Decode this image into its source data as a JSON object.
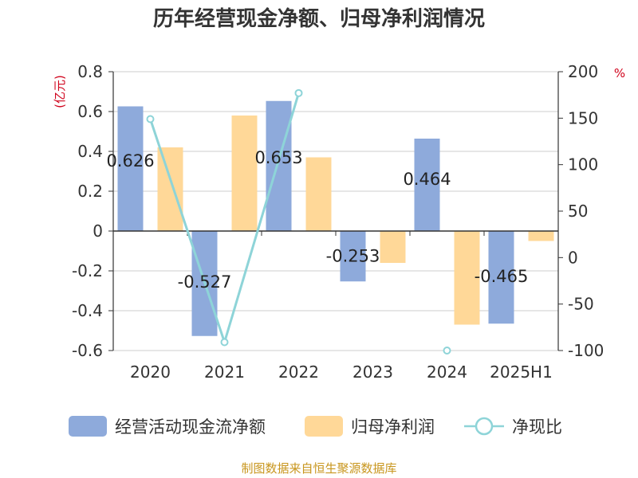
{
  "chart_data": {
    "type": "bar",
    "title": "历年经营现金净额、归母净利润情况",
    "categories": [
      "2020",
      "2021",
      "2022",
      "2023",
      "2024",
      "2025H1"
    ],
    "left_axis": {
      "unit": "(亿元)",
      "ylim": [
        -0.6,
        0.8
      ],
      "ticks": [
        "0.8",
        "0.6",
        "0.4",
        "0.2",
        "0",
        "-0.2",
        "-0.4",
        "-0.6"
      ]
    },
    "right_axis": {
      "unit": "%",
      "ylim": [
        -100,
        200
      ],
      "ticks": [
        "200",
        "150",
        "100",
        "50",
        "0",
        "-50",
        "-100"
      ]
    },
    "series": [
      {
        "name": "经营活动现金流净额",
        "kind": "bar",
        "axis": "left",
        "color": "#8eaadb",
        "values": [
          0.626,
          -0.527,
          0.653,
          -0.253,
          0.464,
          -0.465
        ],
        "labels": [
          "0.626",
          "-0.527",
          "0.653",
          "-0.253",
          "0.464",
          "-0.465"
        ]
      },
      {
        "name": "归母净利润",
        "kind": "bar",
        "axis": "left",
        "color": "#ffd898",
        "values": [
          0.42,
          0.58,
          0.37,
          -0.16,
          -0.47,
          -0.05
        ]
      },
      {
        "name": "净现比",
        "kind": "line",
        "axis": "right",
        "color": "#8ed4d8",
        "values": [
          149,
          -91,
          177,
          null,
          -100,
          null
        ]
      }
    ],
    "grid": true,
    "legend_position": "bottom"
  },
  "colors": {
    "text": "#333333",
    "unit": "#d0021b",
    "source": "#c8961e",
    "grid": "#cccccc"
  },
  "source_text": "制图数据来自恒生聚源数据库"
}
